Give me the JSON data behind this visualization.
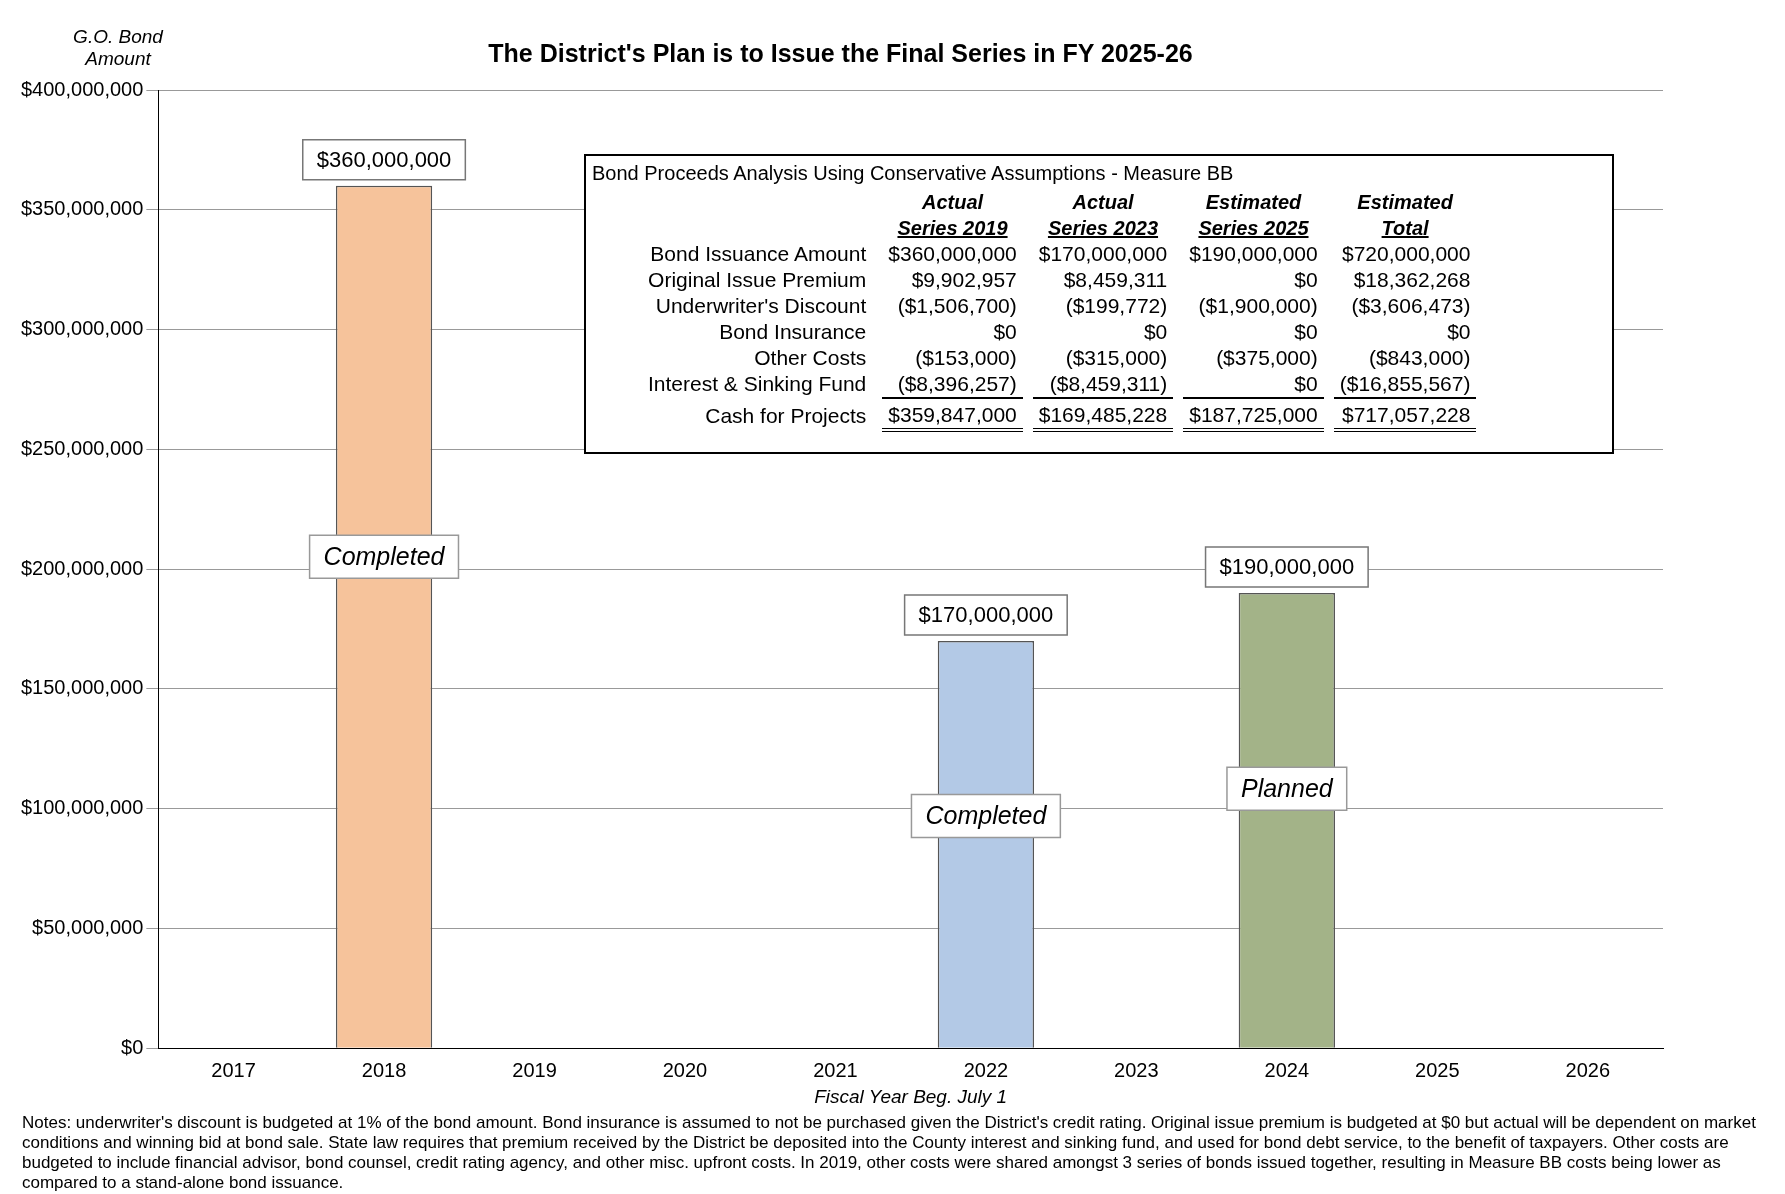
{
  "chart_data": [
    {
      "type": "bar",
      "title": "The District's Plan is to Issue the Final Series in FY 2025-26",
      "ylabel": "G.O. Bond Amount",
      "xlabel": "Fiscal Year Beg. July 1",
      "categories": [
        "2017",
        "2018",
        "2019",
        "2020",
        "2021",
        "2022",
        "2023",
        "2024",
        "2025",
        "2026"
      ],
      "values": [
        null,
        360000000,
        null,
        null,
        null,
        170000000,
        null,
        190000000,
        null,
        null
      ],
      "colors": [
        "#f6c39b",
        "#f6c39b",
        "#f6c39b",
        "#f6c39b",
        "#f6c39b",
        "#b3c9e6",
        "#b3c9e6",
        "#a3b388",
        "#a3b388",
        "#a3b388"
      ],
      "value_labels": [
        null,
        "$360,000,000",
        null,
        null,
        null,
        "$170,000,000",
        null,
        "$190,000,000",
        null,
        null
      ],
      "ylim": [
        0,
        400000000
      ],
      "yticks": [
        {
          "value": 0,
          "label": "$0"
        },
        {
          "value": 50000000,
          "label": "$50,000,000"
        },
        {
          "value": 100000000,
          "label": "$100,000,000"
        },
        {
          "value": 150000000,
          "label": "$150,000,000"
        },
        {
          "value": 200000000,
          "label": "$200,000,000"
        },
        {
          "value": 250000000,
          "label": "$250,000,000"
        },
        {
          "value": 300000000,
          "label": "$300,000,000"
        },
        {
          "value": 350000000,
          "label": "$350,000,000"
        },
        {
          "value": 400000000,
          "label": "$400,000,000"
        }
      ],
      "grid": "y",
      "legend": false,
      "annotations": [
        "Completed",
        "Completed",
        "Planned",
        "Notes: underwriter's discount is budgeted at 1% of the bond amount. Bond insurance is assumed to not be purchased given the District's credit rating. Original issue premium is budgeted at $0 but actual will be dependent on market conditions and winning bid at bond sale. State law requires that premium received by the District be deposited into the County interest and sinking fund, and used for bond debt service, to the benefit of taxpayers. Other costs are budgeted to include financial advisor, bond counsel, credit rating agency, and other misc. upfront costs. In 2019, other costs were shared amongst 3 series of bonds issued together, resulting in Measure BB costs being lower as compared to a stand-alone bond issuance."
      ]
    },
    {
      "type": "other",
      "title": "Bond Proceeds Analysis Using Conservative Assumptions - Measure BB",
      "categories": [
        [
          "Actual",
          "Series 2019"
        ],
        [
          "Actual",
          "Series 2023"
        ],
        [
          "Estimated",
          "Series 2025"
        ],
        [
          "Estimated",
          "Total"
        ]
      ],
      "y_categories": [
        "Bond Issuance Amount",
        "Original Issue Premium",
        "Underwriter's Discount",
        "Bond Insurance",
        "Other Costs",
        "Interest & Sinking Fund",
        "Cash for Projects"
      ],
      "cell_labels": [
        [
          "$360,000,000",
          "$170,000,000",
          "$190,000,000",
          "$720,000,000"
        ],
        [
          "$9,902,957",
          "$8,459,311",
          "$0",
          "$18,362,268"
        ],
        [
          "($1,506,700)",
          "($199,772)",
          "($1,900,000)",
          "($3,606,473)"
        ],
        [
          "$0",
          "$0",
          "$0",
          "$0"
        ],
        [
          "($153,000)",
          "($315,000)",
          "($375,000)",
          "($843,000)"
        ],
        [
          "($8,396,257)",
          "($8,459,311)",
          "$0",
          "($16,855,567)"
        ],
        [
          "$359,847,000",
          "$169,485,228",
          "$187,725,000",
          "$717,057,228"
        ]
      ]
    }
  ]
}
